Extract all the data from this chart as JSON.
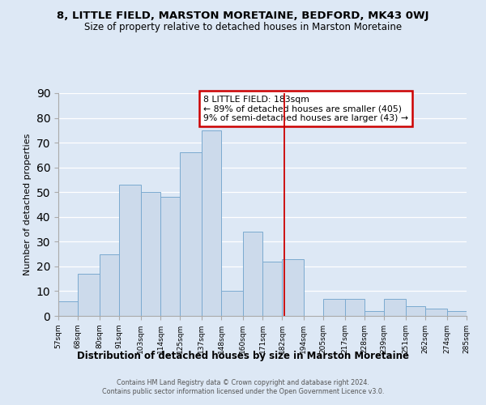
{
  "title": "8, LITTLE FIELD, MARSTON MORETAINE, BEDFORD, MK43 0WJ",
  "subtitle": "Size of property relative to detached houses in Marston Moretaine",
  "xlabel": "Distribution of detached houses by size in Marston Moretaine",
  "ylabel": "Number of detached properties",
  "bin_edges": [
    57,
    68,
    80,
    91,
    103,
    114,
    125,
    137,
    148,
    160,
    171,
    182,
    194,
    205,
    217,
    228,
    239,
    251,
    262,
    274,
    285
  ],
  "bar_heights": [
    6,
    17,
    25,
    53,
    50,
    48,
    66,
    75,
    10,
    34,
    22,
    23,
    0,
    7,
    7,
    2,
    7,
    4,
    3,
    2
  ],
  "bar_color": "#ccdaeb",
  "bar_edgecolor": "#7baad0",
  "reference_line_x": 183,
  "reference_line_color": "#cc0000",
  "annotation_title": "8 LITTLE FIELD: 183sqm",
  "annotation_line1": "← 89% of detached houses are smaller (405)",
  "annotation_line2": "9% of semi-detached houses are larger (43) →",
  "ylim": [
    0,
    90
  ],
  "yticks": [
    0,
    10,
    20,
    30,
    40,
    50,
    60,
    70,
    80,
    90
  ],
  "tick_labels": [
    "57sqm",
    "68sqm",
    "80sqm",
    "91sqm",
    "103sqm",
    "114sqm",
    "125sqm",
    "137sqm",
    "148sqm",
    "160sqm",
    "171sqm",
    "182sqm",
    "194sqm",
    "205sqm",
    "217sqm",
    "228sqm",
    "239sqm",
    "251sqm",
    "262sqm",
    "274sqm",
    "285sqm"
  ],
  "footer_line1": "Contains HM Land Registry data © Crown copyright and database right 2024.",
  "footer_line2": "Contains public sector information licensed under the Open Government Licence v3.0.",
  "bg_color": "#dde8f5",
  "plot_bg_color": "#dde8f5"
}
